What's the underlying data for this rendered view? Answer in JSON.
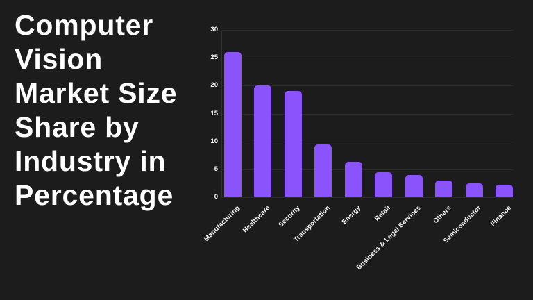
{
  "title_lines": [
    "Computer",
    "Vision",
    "Market Size",
    "Share by",
    "Industry in",
    "Percentage"
  ],
  "colors": {
    "background": "#1c1c1d",
    "bar": "#8b53fb",
    "gridline": "#2b2b2c",
    "axis_line": "#303031",
    "text": "#ffffff"
  },
  "chart_data": {
    "type": "bar",
    "categories": [
      "Manufacturing",
      "Healthcare",
      "Security",
      "Transportation",
      "Energy",
      "Retail",
      "Business & Legal Services",
      "Others",
      "Semiconductor",
      "Finance"
    ],
    "values": [
      26,
      20,
      19,
      9.5,
      6.3,
      4.5,
      4,
      3,
      2.5,
      2.2
    ],
    "title": "Computer Vision Market Size Share by Industry in Percentage",
    "xlabel": "",
    "ylabel": "",
    "ylim": [
      0,
      30
    ],
    "yticks": [
      0,
      5,
      10,
      15,
      20,
      25,
      30
    ],
    "grid": true,
    "legend": false
  }
}
